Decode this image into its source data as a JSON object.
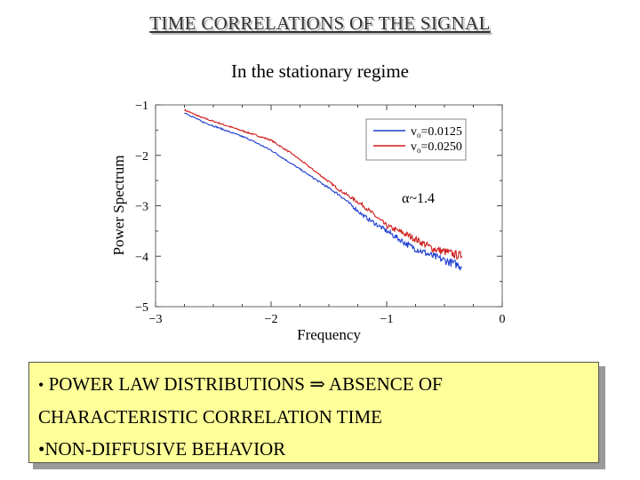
{
  "header": {
    "title": "TIME CORRELATIONS OF THE SIGNAL",
    "subtitle": "In the stationary regime"
  },
  "chart_data": {
    "type": "line",
    "xlabel": "Frequency",
    "ylabel": "Power Spectrum",
    "xlim": [
      -3,
      0
    ],
    "ylim": [
      -5,
      -1
    ],
    "x_ticks": [
      "−3",
      "−2",
      "−1",
      "0"
    ],
    "y_ticks": [
      "−1",
      "−2",
      "−3",
      "−4",
      "−5"
    ],
    "annotation": "α~1.4",
    "legend_position": "top-right",
    "series": [
      {
        "name": "vo=0.0125",
        "legend_main": "v",
        "legend_sub": "o",
        "legend_rest": "=0.0125",
        "color": "#1f3fd0",
        "x": [
          -2.75,
          -2.6,
          -2.4,
          -2.2,
          -2.0,
          -1.8,
          -1.6,
          -1.4,
          -1.2,
          -1.0,
          -0.8,
          -0.6,
          -0.35
        ],
        "y": [
          -1.15,
          -1.33,
          -1.5,
          -1.67,
          -1.9,
          -2.2,
          -2.5,
          -2.8,
          -3.2,
          -3.5,
          -3.8,
          -4.0,
          -4.2
        ]
      },
      {
        "name": "vo=0.0250",
        "legend_main": "v",
        "legend_sub": "o",
        "legend_rest": "=0.0250",
        "color": "#d01c1c",
        "x": [
          -2.75,
          -2.6,
          -2.4,
          -2.2,
          -2.0,
          -1.8,
          -1.6,
          -1.4,
          -1.2,
          -1.0,
          -0.8,
          -0.6,
          -0.35
        ],
        "y": [
          -1.1,
          -1.25,
          -1.4,
          -1.55,
          -1.7,
          -2.0,
          -2.35,
          -2.7,
          -3.0,
          -3.4,
          -3.6,
          -3.85,
          -4.0
        ]
      }
    ]
  },
  "bullets": {
    "line1_bullet": "•",
    "line1_text": " POWER LAW DISTRIBUTIONS ",
    "arrow": "⇒",
    "line1_rest": " ABSENCE OF",
    "line2": "CHARACTERISTIC CORRELATION TIME",
    "line3": "•NON-DIFFUSIVE BEHAVIOR"
  }
}
